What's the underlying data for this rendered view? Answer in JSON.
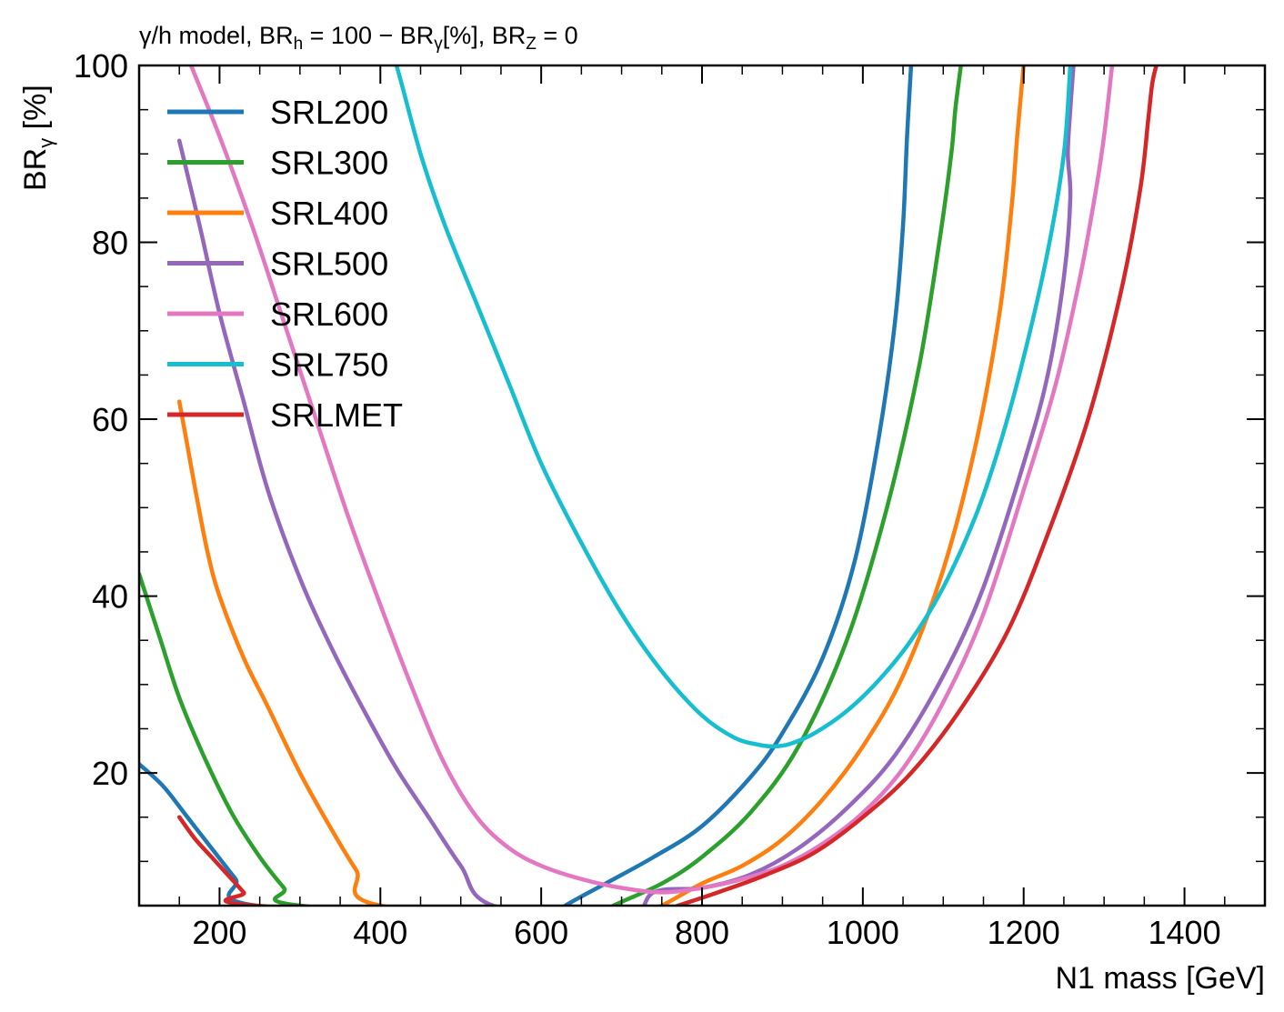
{
  "chart_data": {
    "type": "line",
    "title": "γ/h model, BR",
    "title_parts": {
      "pre": "γ/h model, BR",
      "sub1": "h",
      "mid1": " = 100 − BR",
      "sub2": "γ",
      "mid2": "[%], BR",
      "sub3": "Z",
      "post": " = 0"
    },
    "xlabel": "N1 mass [GeV]",
    "ylabel": "BR",
    "ylabel_sub": "γ",
    "ylabel_unit": " [%]",
    "xlim": [
      100,
      1500
    ],
    "ylim": [
      5,
      100
    ],
    "xticks": [
      200,
      400,
      600,
      800,
      1000,
      1200,
      1400
    ],
    "yticks": [
      20,
      40,
      60,
      80,
      100
    ],
    "grid": false,
    "legend_position": "top-left",
    "series": [
      {
        "name": "SRL200",
        "color": "#1f77b4",
        "x": [
          100,
          130,
          160,
          190,
          220,
          245,
          600,
          630,
          680,
          740,
          800,
          860,
          900,
          950,
          990,
          1020,
          1040,
          1050,
          1055,
          1060
        ],
        "y": [
          21,
          18.5,
          15,
          11.5,
          8,
          5,
          3,
          5,
          7.5,
          10.5,
          14,
          19.5,
          24.5,
          33,
          44,
          58,
          71,
          82,
          92,
          100
        ]
      },
      {
        "name": "SRL300",
        "color": "#2ca02c",
        "x": [
          100,
          125,
          150,
          180,
          215,
          250,
          280,
          300,
          650,
          690,
          750,
          800,
          860,
          920,
          980,
          1030,
          1070,
          1095,
          1110,
          1115,
          1122
        ],
        "y": [
          42.5,
          35.5,
          28.5,
          22,
          15.5,
          10.5,
          7,
          5,
          3,
          5,
          7.5,
          10.5,
          15.5,
          23,
          35,
          50,
          66,
          80,
          90,
          95,
          100
        ]
      },
      {
        "name": "SRL400",
        "color": "#ff7f0e",
        "x": [
          150,
          160,
          170,
          185,
          200,
          230,
          260,
          300,
          340,
          370,
          400,
          700,
          750,
          800,
          850,
          900,
          950,
          1000,
          1050,
          1100,
          1140,
          1170,
          1185,
          1192,
          1200
        ],
        "y": [
          62,
          57,
          52,
          45,
          40,
          33,
          27.5,
          20,
          13.5,
          9,
          5,
          3,
          5,
          7.5,
          9.5,
          12.5,
          17,
          23,
          31,
          43,
          57,
          72,
          84,
          92,
          100
        ]
      },
      {
        "name": "SRL500",
        "color": "#9467bd",
        "x": [
          150,
          175,
          200,
          230,
          260,
          300,
          340,
          380,
          420,
          460,
          500,
          540,
          700,
          740,
          800,
          860,
          920,
          980,
          1040,
          1100,
          1150,
          1200,
          1230,
          1250,
          1258,
          1255,
          1258,
          1262
        ],
        "y": [
          91.5,
          82,
          72,
          62,
          52,
          42,
          34,
          27,
          20.5,
          15,
          9.5,
          5,
          3,
          6.5,
          7,
          8.5,
          11.5,
          16,
          22,
          31,
          41,
          55,
          65,
          76,
          85,
          90,
          95,
          100
        ]
      },
      {
        "name": "SRL600",
        "color": "#e377c2",
        "x": [
          160,
          200,
          240,
          280,
          320,
          360,
          400,
          440,
          480,
          520,
          560,
          600,
          650,
          700,
          750,
          800,
          850,
          900,
          950,
          1000,
          1050,
          1100,
          1150,
          1200,
          1240,
          1270,
          1290,
          1300,
          1310
        ],
        "y": [
          101,
          92,
          82,
          71,
          60,
          49,
          39,
          29.5,
          21,
          15,
          11.5,
          9.5,
          8,
          7,
          6.5,
          7,
          8,
          9.5,
          12,
          15.5,
          20.5,
          28,
          38,
          52,
          64,
          76,
          86,
          92,
          100
        ]
      },
      {
        "name": "SRL750",
        "color": "#17becf",
        "x": [
          400,
          420,
          450,
          480,
          520,
          560,
          600,
          650,
          700,
          750,
          800,
          840,
          870,
          890,
          910,
          940,
          980,
          1020,
          1060,
          1100,
          1140,
          1170,
          1200,
          1230,
          1250,
          1258
        ],
        "y": [
          105,
          100,
          90,
          82,
          73,
          64,
          55,
          46,
          38,
          31.5,
          26.5,
          24,
          23.2,
          23,
          23.3,
          24.5,
          27,
          30.5,
          35,
          41,
          49,
          57,
          67,
          79,
          90,
          100
        ]
      },
      {
        "name": "SRLMET",
        "color": "#d62728",
        "x": [
          150,
          170,
          190,
          210,
          230,
          245,
          700,
          770,
          820,
          880,
          940,
          1000,
          1060,
          1120,
          1180,
          1230,
          1280,
          1320,
          1345,
          1355,
          1360,
          1365
        ],
        "y": [
          15,
          12.5,
          10.5,
          8.5,
          6.5,
          5,
          3,
          5,
          6.5,
          8.5,
          11,
          15,
          20,
          27,
          36,
          47,
          60,
          74,
          86,
          94,
          98,
          100
        ]
      }
    ]
  }
}
